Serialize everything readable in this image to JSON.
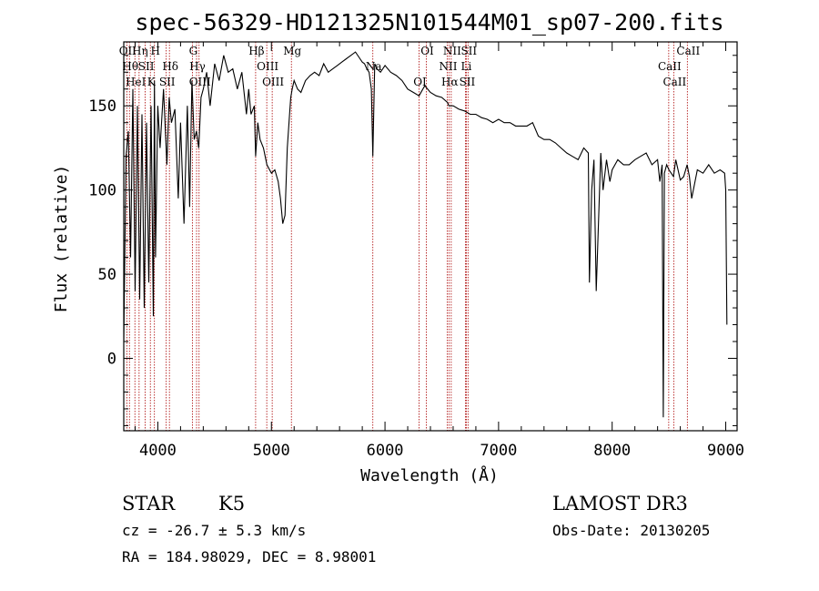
{
  "chart_data": {
    "type": "line",
    "title": "spec-56329-HD121325N101544M01_sp07-200.fits",
    "xlabel": "Wavelength (Å)",
    "ylabel": "Flux (relative)",
    "xlim": [
      3700,
      9100
    ],
    "ylim": [
      -43,
      188
    ],
    "xticks": [
      "4000",
      "5000",
      "6000",
      "7000",
      "8000",
      "9000"
    ],
    "yticks": [
      "0",
      "50",
      "100",
      "150"
    ],
    "series": [
      {
        "name": "flux",
        "x": [
          3700,
          3720,
          3740,
          3760,
          3780,
          3800,
          3820,
          3840,
          3860,
          3880,
          3900,
          3920,
          3940,
          3960,
          3970,
          3980,
          4000,
          4020,
          4050,
          4080,
          4100,
          4120,
          4150,
          4180,
          4200,
          4230,
          4260,
          4280,
          4300,
          4320,
          4340,
          4360,
          4380,
          4400,
          4430,
          4460,
          4500,
          4540,
          4580,
          4620,
          4660,
          4700,
          4740,
          4780,
          4800,
          4820,
          4850,
          4861,
          4880,
          4900,
          4930,
          4960,
          5000,
          5030,
          5060,
          5080,
          5100,
          5120,
          5140,
          5160,
          5170,
          5183,
          5200,
          5230,
          5260,
          5300,
          5340,
          5380,
          5420,
          5460,
          5500,
          5540,
          5580,
          5620,
          5660,
          5700,
          5740,
          5780,
          5800,
          5820,
          5840,
          5860,
          5880,
          5893,
          5910,
          5930,
          5960,
          6000,
          6050,
          6100,
          6150,
          6200,
          6250,
          6300,
          6350,
          6400,
          6450,
          6500,
          6550,
          6563,
          6600,
          6650,
          6700,
          6750,
          6800,
          6850,
          6900,
          6950,
          7000,
          7050,
          7100,
          7150,
          7200,
          7250,
          7300,
          7350,
          7400,
          7450,
          7500,
          7550,
          7600,
          7650,
          7700,
          7750,
          7790,
          7800,
          7820,
          7840,
          7860,
          7900,
          7920,
          7950,
          7980,
          8000,
          8050,
          8100,
          8150,
          8200,
          8250,
          8300,
          8350,
          8400,
          8420,
          8440,
          8450,
          8460,
          8480,
          8500,
          8520,
          8540,
          8560,
          8600,
          8630,
          8660,
          8680,
          8700,
          8750,
          8800,
          8850,
          8900,
          8950,
          8990,
          9000,
          9010
        ],
        "values": [
          10,
          120,
          135,
          60,
          160,
          40,
          150,
          35,
          145,
          30,
          140,
          45,
          150,
          25,
          165,
          60,
          150,
          125,
          160,
          115,
          155,
          140,
          148,
          95,
          140,
          80,
          150,
          90,
          165,
          130,
          135,
          125,
          155,
          160,
          170,
          150,
          175,
          165,
          180,
          170,
          172,
          160,
          170,
          145,
          160,
          145,
          150,
          120,
          140,
          130,
          125,
          115,
          110,
          112,
          105,
          95,
          80,
          85,
          125,
          145,
          155,
          160,
          165,
          160,
          158,
          165,
          168,
          170,
          168,
          175,
          170,
          172,
          174,
          176,
          178,
          180,
          182,
          178,
          176,
          175,
          172,
          170,
          160,
          120,
          175,
          172,
          170,
          174,
          170,
          168,
          165,
          160,
          158,
          156,
          162,
          158,
          156,
          155,
          152,
          150,
          150,
          148,
          147,
          145,
          145,
          143,
          142,
          140,
          142,
          140,
          140,
          138,
          138,
          138,
          140,
          132,
          130,
          130,
          128,
          125,
          122,
          120,
          118,
          125,
          122,
          45,
          100,
          118,
          40,
          122,
          100,
          118,
          105,
          112,
          118,
          115,
          115,
          118,
          120,
          122,
          115,
          118,
          105,
          115,
          -35,
          110,
          115,
          112,
          110,
          108,
          118,
          106,
          108,
          115,
          108,
          95,
          112,
          110,
          115,
          110,
          112,
          110,
          100,
          20
        ]
      }
    ],
    "line_markers": [
      {
        "x": 3727,
        "label": "OII"
      },
      {
        "x": 3750,
        "label": "Hθ"
      },
      {
        "x": 3798,
        "label": "HeI"
      },
      {
        "x": 3835,
        "label": "Hη"
      },
      {
        "x": 3889,
        "label": "SII"
      },
      {
        "x": 3934,
        "label": "K"
      },
      {
        "x": 3970,
        "label": "H"
      },
      {
        "x": 4102,
        "label": "Hδ"
      },
      {
        "x": 4074,
        "label": "SII"
      },
      {
        "x": 4304,
        "label": "G"
      },
      {
        "x": 4341,
        "label": "Hγ"
      },
      {
        "x": 4363,
        "label": "OIII"
      },
      {
        "x": 4861,
        "label": "Hβ"
      },
      {
        "x": 4959,
        "label": "OIII"
      },
      {
        "x": 5007,
        "label": "OIII"
      },
      {
        "x": 5176,
        "label": "Mg"
      },
      {
        "x": 5893,
        "label": "Na"
      },
      {
        "x": 6300,
        "label": "OI"
      },
      {
        "x": 6364,
        "label": "OI"
      },
      {
        "x": 6548,
        "label": "NII"
      },
      {
        "x": 6563,
        "label": "Hα"
      },
      {
        "x": 6583,
        "label": "NII"
      },
      {
        "x": 6708,
        "label": "Li"
      },
      {
        "x": 6716,
        "label": "SII"
      },
      {
        "x": 6731,
        "label": "SII"
      },
      {
        "x": 8498,
        "label": "CaII"
      },
      {
        "x": 8542,
        "label": "CaII"
      },
      {
        "x": 8662,
        "label": "CaII"
      }
    ]
  },
  "info": {
    "object_type": "STAR",
    "subclass": "K5",
    "survey": "LAMOST DR3",
    "redshift": "cz = -26.7 ± 5.3 km/s",
    "obs_date": "Obs-Date: 20130205",
    "coordinates": "RA = 184.98029, DEC =   8.98001"
  },
  "colors": {
    "spectrum": "#000000",
    "marker": "#aa0000",
    "background": "#ffffff"
  }
}
